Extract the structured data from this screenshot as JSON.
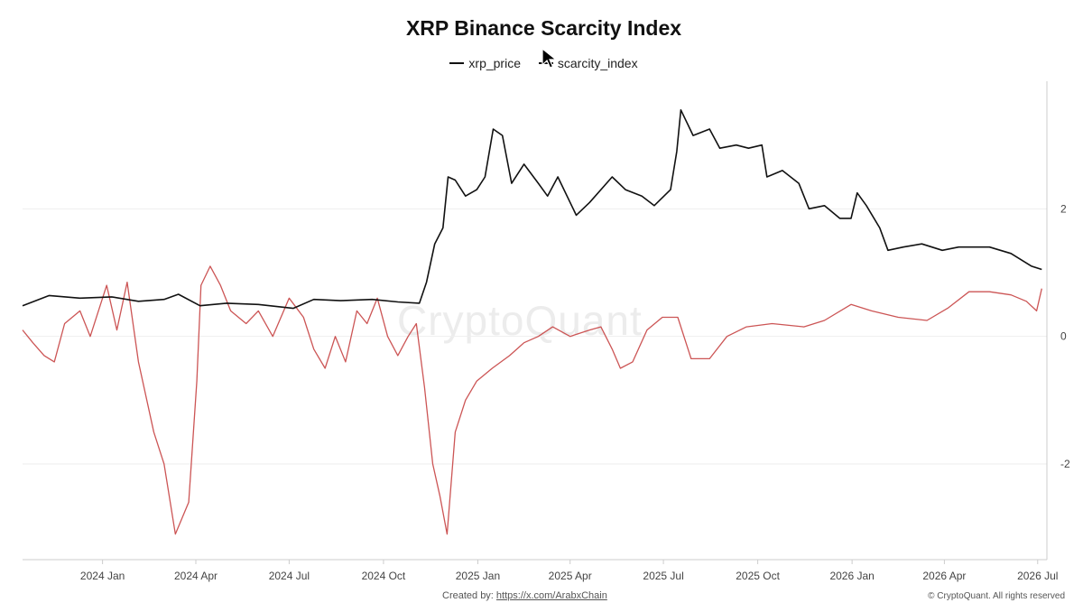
{
  "chart_data": {
    "type": "line",
    "title": "XRP Binance Scarcity Index",
    "xlabel": "",
    "ylabel": "",
    "x_range": [
      "2023-10-15",
      "2026-07-10"
    ],
    "ylim": [
      -3.5,
      4.0
    ],
    "yticks": [
      2,
      0,
      -2
    ],
    "xticks": [
      {
        "label": "2024 Jan",
        "date": "2024-01-01"
      },
      {
        "label": "2024 Apr",
        "date": "2024-04-01"
      },
      {
        "label": "2024 Jul",
        "date": "2024-07-01"
      },
      {
        "label": "2024 Oct",
        "date": "2024-10-01"
      },
      {
        "label": "2025 Jan",
        "date": "2025-01-01"
      },
      {
        "label": "2025 Apr",
        "date": "2025-04-01"
      },
      {
        "label": "2025 Jul",
        "date": "2025-07-01"
      },
      {
        "label": "2025 Oct",
        "date": "2025-10-01"
      },
      {
        "label": "2026 Jan",
        "date": "2026-01-01"
      },
      {
        "label": "2026 Apr",
        "date": "2026-04-01"
      },
      {
        "label": "2026 Jul",
        "date": "2026-07-01"
      }
    ],
    "grid": "horizontal",
    "legend_position": "top-center",
    "series": [
      {
        "name": "xrp_price",
        "color": "#111111",
        "points": [
          [
            "2023-10-15",
            0.48
          ],
          [
            "2023-11-10",
            0.64
          ],
          [
            "2023-12-10",
            0.6
          ],
          [
            "2024-01-10",
            0.62
          ],
          [
            "2024-02-05",
            0.55
          ],
          [
            "2024-03-01",
            0.58
          ],
          [
            "2024-03-15",
            0.66
          ],
          [
            "2024-04-05",
            0.48
          ],
          [
            "2024-05-01",
            0.52
          ],
          [
            "2024-06-01",
            0.5
          ],
          [
            "2024-07-05",
            0.44
          ],
          [
            "2024-07-25",
            0.58
          ],
          [
            "2024-08-20",
            0.56
          ],
          [
            "2024-09-20",
            0.58
          ],
          [
            "2024-10-15",
            0.54
          ],
          [
            "2024-11-05",
            0.52
          ],
          [
            "2024-11-12",
            0.85
          ],
          [
            "2024-11-20",
            1.45
          ],
          [
            "2024-11-28",
            1.7
          ],
          [
            "2024-12-03",
            2.5
          ],
          [
            "2024-12-10",
            2.45
          ],
          [
            "2024-12-20",
            2.2
          ],
          [
            "2024-12-31",
            2.3
          ],
          [
            "2025-01-08",
            2.5
          ],
          [
            "2025-01-16",
            3.25
          ],
          [
            "2025-01-25",
            3.15
          ],
          [
            "2025-02-03",
            2.4
          ],
          [
            "2025-02-15",
            2.7
          ],
          [
            "2025-03-01",
            2.4
          ],
          [
            "2025-03-10",
            2.2
          ],
          [
            "2025-03-20",
            2.5
          ],
          [
            "2025-04-07",
            1.9
          ],
          [
            "2025-04-20",
            2.1
          ],
          [
            "2025-05-12",
            2.5
          ],
          [
            "2025-05-25",
            2.3
          ],
          [
            "2025-06-10",
            2.2
          ],
          [
            "2025-06-22",
            2.05
          ],
          [
            "2025-07-08",
            2.3
          ],
          [
            "2025-07-14",
            2.9
          ],
          [
            "2025-07-18",
            3.55
          ],
          [
            "2025-07-30",
            3.15
          ],
          [
            "2025-08-15",
            3.25
          ],
          [
            "2025-08-25",
            2.95
          ],
          [
            "2025-09-10",
            3.0
          ],
          [
            "2025-09-22",
            2.95
          ],
          [
            "2025-10-05",
            3.0
          ],
          [
            "2025-10-10",
            2.5
          ],
          [
            "2025-10-25",
            2.6
          ],
          [
            "2025-11-10",
            2.4
          ],
          [
            "2025-11-20",
            2.0
          ],
          [
            "2025-12-05",
            2.05
          ],
          [
            "2025-12-20",
            1.85
          ],
          [
            "2025-12-31",
            1.85
          ],
          [
            "2026-01-06",
            2.25
          ],
          [
            "2026-01-15",
            2.05
          ],
          [
            "2026-01-28",
            1.7
          ],
          [
            "2026-02-05",
            1.35
          ],
          [
            "2026-02-20",
            1.4
          ],
          [
            "2026-03-10",
            1.45
          ],
          [
            "2026-03-30",
            1.35
          ],
          [
            "2026-04-15",
            1.4
          ],
          [
            "2026-05-15",
            1.4
          ],
          [
            "2026-06-05",
            1.3
          ],
          [
            "2026-06-25",
            1.1
          ],
          [
            "2026-07-05",
            1.05
          ]
        ]
      },
      {
        "name": "scarcity_index",
        "color": "#cc5555",
        "points": [
          [
            "2023-10-15",
            0.1
          ],
          [
            "2023-10-25",
            -0.1
          ],
          [
            "2023-11-05",
            -0.3
          ],
          [
            "2023-11-15",
            -0.4
          ],
          [
            "2023-11-25",
            0.2
          ],
          [
            "2023-12-10",
            0.4
          ],
          [
            "2023-12-20",
            0.0
          ],
          [
            "2024-01-05",
            0.8
          ],
          [
            "2024-01-15",
            0.1
          ],
          [
            "2024-01-25",
            0.85
          ],
          [
            "2024-02-05",
            -0.4
          ],
          [
            "2024-02-20",
            -1.5
          ],
          [
            "2024-03-01",
            -2.0
          ],
          [
            "2024-03-12",
            -3.1
          ],
          [
            "2024-03-25",
            -2.6
          ],
          [
            "2024-04-02",
            -0.7
          ],
          [
            "2024-04-06",
            0.8
          ],
          [
            "2024-04-15",
            1.1
          ],
          [
            "2024-04-25",
            0.8
          ],
          [
            "2024-05-05",
            0.4
          ],
          [
            "2024-05-20",
            0.2
          ],
          [
            "2024-06-01",
            0.4
          ],
          [
            "2024-06-15",
            0.0
          ],
          [
            "2024-07-01",
            0.6
          ],
          [
            "2024-07-15",
            0.3
          ],
          [
            "2024-07-25",
            -0.2
          ],
          [
            "2024-08-05",
            -0.5
          ],
          [
            "2024-08-15",
            0.0
          ],
          [
            "2024-08-25",
            -0.4
          ],
          [
            "2024-09-05",
            0.4
          ],
          [
            "2024-09-15",
            0.2
          ],
          [
            "2024-09-25",
            0.6
          ],
          [
            "2024-10-05",
            0.0
          ],
          [
            "2024-10-15",
            -0.3
          ],
          [
            "2024-10-25",
            0.0
          ],
          [
            "2024-11-02",
            0.2
          ],
          [
            "2024-11-10",
            -0.8
          ],
          [
            "2024-11-18",
            -2.0
          ],
          [
            "2024-11-25",
            -2.5
          ],
          [
            "2024-12-02",
            -3.1
          ],
          [
            "2024-12-10",
            -1.5
          ],
          [
            "2024-12-20",
            -1.0
          ],
          [
            "2024-12-31",
            -0.7
          ],
          [
            "2025-01-15",
            -0.5
          ],
          [
            "2025-02-01",
            -0.3
          ],
          [
            "2025-02-15",
            -0.1
          ],
          [
            "2025-03-01",
            0.0
          ],
          [
            "2025-03-15",
            0.15
          ],
          [
            "2025-04-01",
            0.0
          ],
          [
            "2025-04-20",
            0.1
          ],
          [
            "2025-05-01",
            0.15
          ],
          [
            "2025-05-12",
            -0.2
          ],
          [
            "2025-05-20",
            -0.5
          ],
          [
            "2025-06-01",
            -0.4
          ],
          [
            "2025-06-15",
            0.1
          ],
          [
            "2025-06-30",
            0.3
          ],
          [
            "2025-07-15",
            0.3
          ],
          [
            "2025-07-28",
            -0.35
          ],
          [
            "2025-08-15",
            -0.35
          ],
          [
            "2025-09-01",
            0.0
          ],
          [
            "2025-09-20",
            0.15
          ],
          [
            "2025-10-15",
            0.2
          ],
          [
            "2025-11-15",
            0.15
          ],
          [
            "2025-12-05",
            0.25
          ],
          [
            "2025-12-31",
            0.5
          ],
          [
            "2026-01-20",
            0.4
          ],
          [
            "2026-02-15",
            0.3
          ],
          [
            "2026-03-15",
            0.25
          ],
          [
            "2026-04-05",
            0.45
          ],
          [
            "2026-04-25",
            0.7
          ],
          [
            "2026-05-15",
            0.7
          ],
          [
            "2026-06-05",
            0.65
          ],
          [
            "2026-06-20",
            0.55
          ],
          [
            "2026-06-30",
            0.4
          ],
          [
            "2026-07-05",
            0.75
          ]
        ]
      }
    ]
  },
  "footer": {
    "created_prefix": "Created by: ",
    "created_link": "https://x.com/ArabxChain",
    "copyright": "© CryptoQuant. All rights reserved"
  },
  "watermark": "CryptoQuant"
}
